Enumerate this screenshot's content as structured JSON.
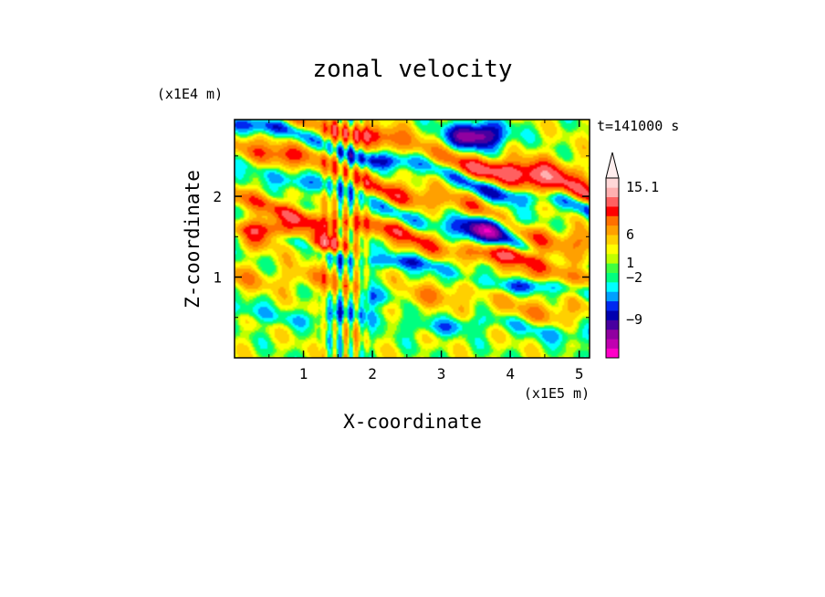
{
  "chart_data": {
    "type": "heatmap",
    "title": "zonal velocity",
    "xlabel": "X-coordinate",
    "ylabel": "Z-coordinate",
    "x_multiplier": "(x1E5 m)",
    "y_multiplier": "(x1E4 m)",
    "time_label": "t=141000 s",
    "xlim": [
      0,
      5.15
    ],
    "ylim": [
      0,
      2.95
    ],
    "x_ticks": [
      "1",
      "2",
      "3",
      "4",
      "5"
    ],
    "y_ticks": [
      "1",
      "2"
    ],
    "colorbar": {
      "labels": [
        "15.1",
        "6",
        "1",
        "-2",
        "-9"
      ],
      "colors": [
        "#ff00c8",
        "#c000b0",
        "#9000a0",
        "#4800a0",
        "#0000b0",
        "#0028f0",
        "#00a0ff",
        "#00ffff",
        "#00ff80",
        "#40ff40",
        "#c0ff00",
        "#ffff00",
        "#ffd000",
        "#ffa000",
        "#ff7000",
        "#ff0000",
        "#ff6060",
        "#ffb0b0",
        "#ffd8d8"
      ],
      "extend": "max"
    },
    "field_bands": [
      {
        "center_z": 2.62,
        "slope": -0.22,
        "value": 7,
        "width": 0.13
      },
      {
        "center_z": 2.38,
        "slope": -0.22,
        "value": -6,
        "width": 0.1
      },
      {
        "center_z": 2.05,
        "slope": -0.26,
        "value": 6,
        "width": 0.14
      },
      {
        "center_z": 1.8,
        "slope": -0.26,
        "value": -4,
        "width": 0.1
      },
      {
        "center_z": 1.5,
        "slope": -0.18,
        "value": 7,
        "width": 0.12
      },
      {
        "center_z": 1.15,
        "slope": -0.15,
        "value": -5,
        "width": 0.09
      },
      {
        "center_z": 0.8,
        "slope": -0.1,
        "value": 3,
        "width": 0.15
      },
      {
        "center_z": 0.45,
        "slope": -0.05,
        "value": -3,
        "width": 0.1
      }
    ],
    "field_blobs": [
      {
        "x": 3.5,
        "z": 2.75,
        "value": -12,
        "radius": 0.25
      },
      {
        "x": 4.4,
        "z": 2.25,
        "value": 6,
        "radius": 0.35
      },
      {
        "x": 3.7,
        "z": 1.6,
        "value": -10,
        "radius": 0.28
      },
      {
        "x": 4.5,
        "z": 1.1,
        "value": 2,
        "radius": 0.45
      },
      {
        "x": 1.3,
        "z": 1.4,
        "value": 8,
        "radius": 0.22
      },
      {
        "x": 2.0,
        "z": 0.75,
        "value": -5,
        "radius": 0.2
      },
      {
        "x": 0.4,
        "z": 1.55,
        "value": 9,
        "radius": 0.25
      }
    ]
  }
}
